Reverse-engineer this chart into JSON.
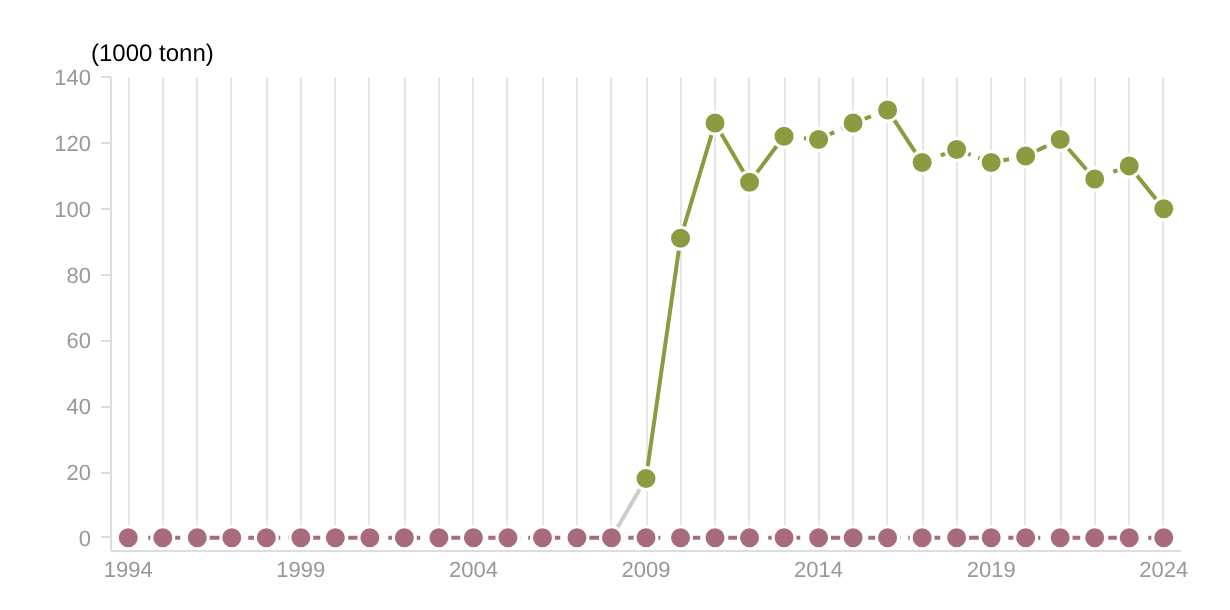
{
  "chart_data": {
    "type": "line",
    "ylabel": "(1000 tonn)",
    "xlim": [
      1993.5,
      2024.5
    ],
    "ylim": [
      -4,
      140
    ],
    "xticks": [
      1994,
      {
        "value": 1995,
        "label": null
      },
      {
        "value": 1996,
        "label": null
      },
      {
        "value": 1997,
        "label": null
      },
      {
        "value": 1998,
        "label": null
      },
      1999,
      {
        "value": 2000,
        "label": null
      },
      {
        "value": 2001,
        "label": null
      },
      {
        "value": 2002,
        "label": null
      },
      {
        "value": 2003,
        "label": null
      },
      2004,
      {
        "value": 2005,
        "label": null
      },
      {
        "value": 2006,
        "label": null
      },
      {
        "value": 2007,
        "label": null
      },
      {
        "value": 2008,
        "label": null
      },
      2009,
      {
        "value": 2010,
        "label": null
      },
      {
        "value": 2011,
        "label": null
      },
      {
        "value": 2012,
        "label": null
      },
      {
        "value": 2013,
        "label": null
      },
      2014,
      {
        "value": 2015,
        "label": null
      },
      {
        "value": 2016,
        "label": null
      },
      {
        "value": 2017,
        "label": null
      },
      {
        "value": 2018,
        "label": null
      },
      2019,
      {
        "value": 2020,
        "label": null
      },
      {
        "value": 2021,
        "label": null
      },
      {
        "value": 2022,
        "label": null
      },
      {
        "value": 2023,
        "label": null
      },
      2024
    ],
    "yticks": [
      0,
      20,
      40,
      60,
      80,
      100,
      120,
      140
    ],
    "grid": "x",
    "marker": "circle",
    "series": [
      {
        "color": "#cccccc",
        "x": [
          2008,
          2009
        ],
        "values": [
          0,
          18
        ],
        "marker": "none",
        "line_style": "solid"
      },
      {
        "color": "#a86b7b",
        "x": [
          1994,
          1995,
          1996,
          1997,
          1998,
          1999,
          2000,
          2001,
          2002,
          2003,
          2004,
          2005,
          2006,
          2007,
          2008,
          2009,
          2010,
          2011,
          2012,
          2013,
          2014,
          2015,
          2016,
          2017,
          2018,
          2019,
          2020,
          2021,
          2022,
          2023,
          2024
        ],
        "values": [
          0,
          0,
          0,
          0,
          0,
          0,
          0,
          0,
          0,
          0,
          0,
          0,
          0,
          0,
          0,
          0,
          0,
          0,
          0,
          0,
          0,
          0,
          0,
          0,
          0,
          0,
          0,
          0,
          0,
          0,
          0
        ],
        "line_style": "dashed"
      },
      {
        "color": "#8c9a40",
        "x": [
          2009,
          2010,
          2011,
          2012,
          2013
        ],
        "values": [
          18,
          91,
          126,
          108,
          122
        ],
        "line_style": "solid"
      },
      {
        "color": "#8c9a40",
        "x": [
          2013,
          2014,
          2015,
          2016
        ],
        "values": [
          122,
          121,
          126,
          130
        ],
        "line_style": "dashed"
      },
      {
        "color": "#8c9a40",
        "x": [
          2016,
          2017
        ],
        "values": [
          130,
          114
        ],
        "line_style": "solid"
      },
      {
        "color": "#8c9a40",
        "x": [
          2017,
          2018,
          2019,
          2020,
          2021
        ],
        "values": [
          114,
          118,
          114,
          116,
          121
        ],
        "line_style": "dashed"
      },
      {
        "color": "#8c9a40",
        "x": [
          2021,
          2022
        ],
        "values": [
          121,
          109
        ],
        "line_style": "solid"
      },
      {
        "color": "#8c9a40",
        "x": [
          2022,
          2023
        ],
        "values": [
          109,
          113
        ],
        "line_style": "dashed"
      },
      {
        "color": "#8c9a40",
        "x": [
          2023,
          2024
        ],
        "values": [
          113,
          100
        ],
        "line_style": "solid"
      }
    ]
  }
}
